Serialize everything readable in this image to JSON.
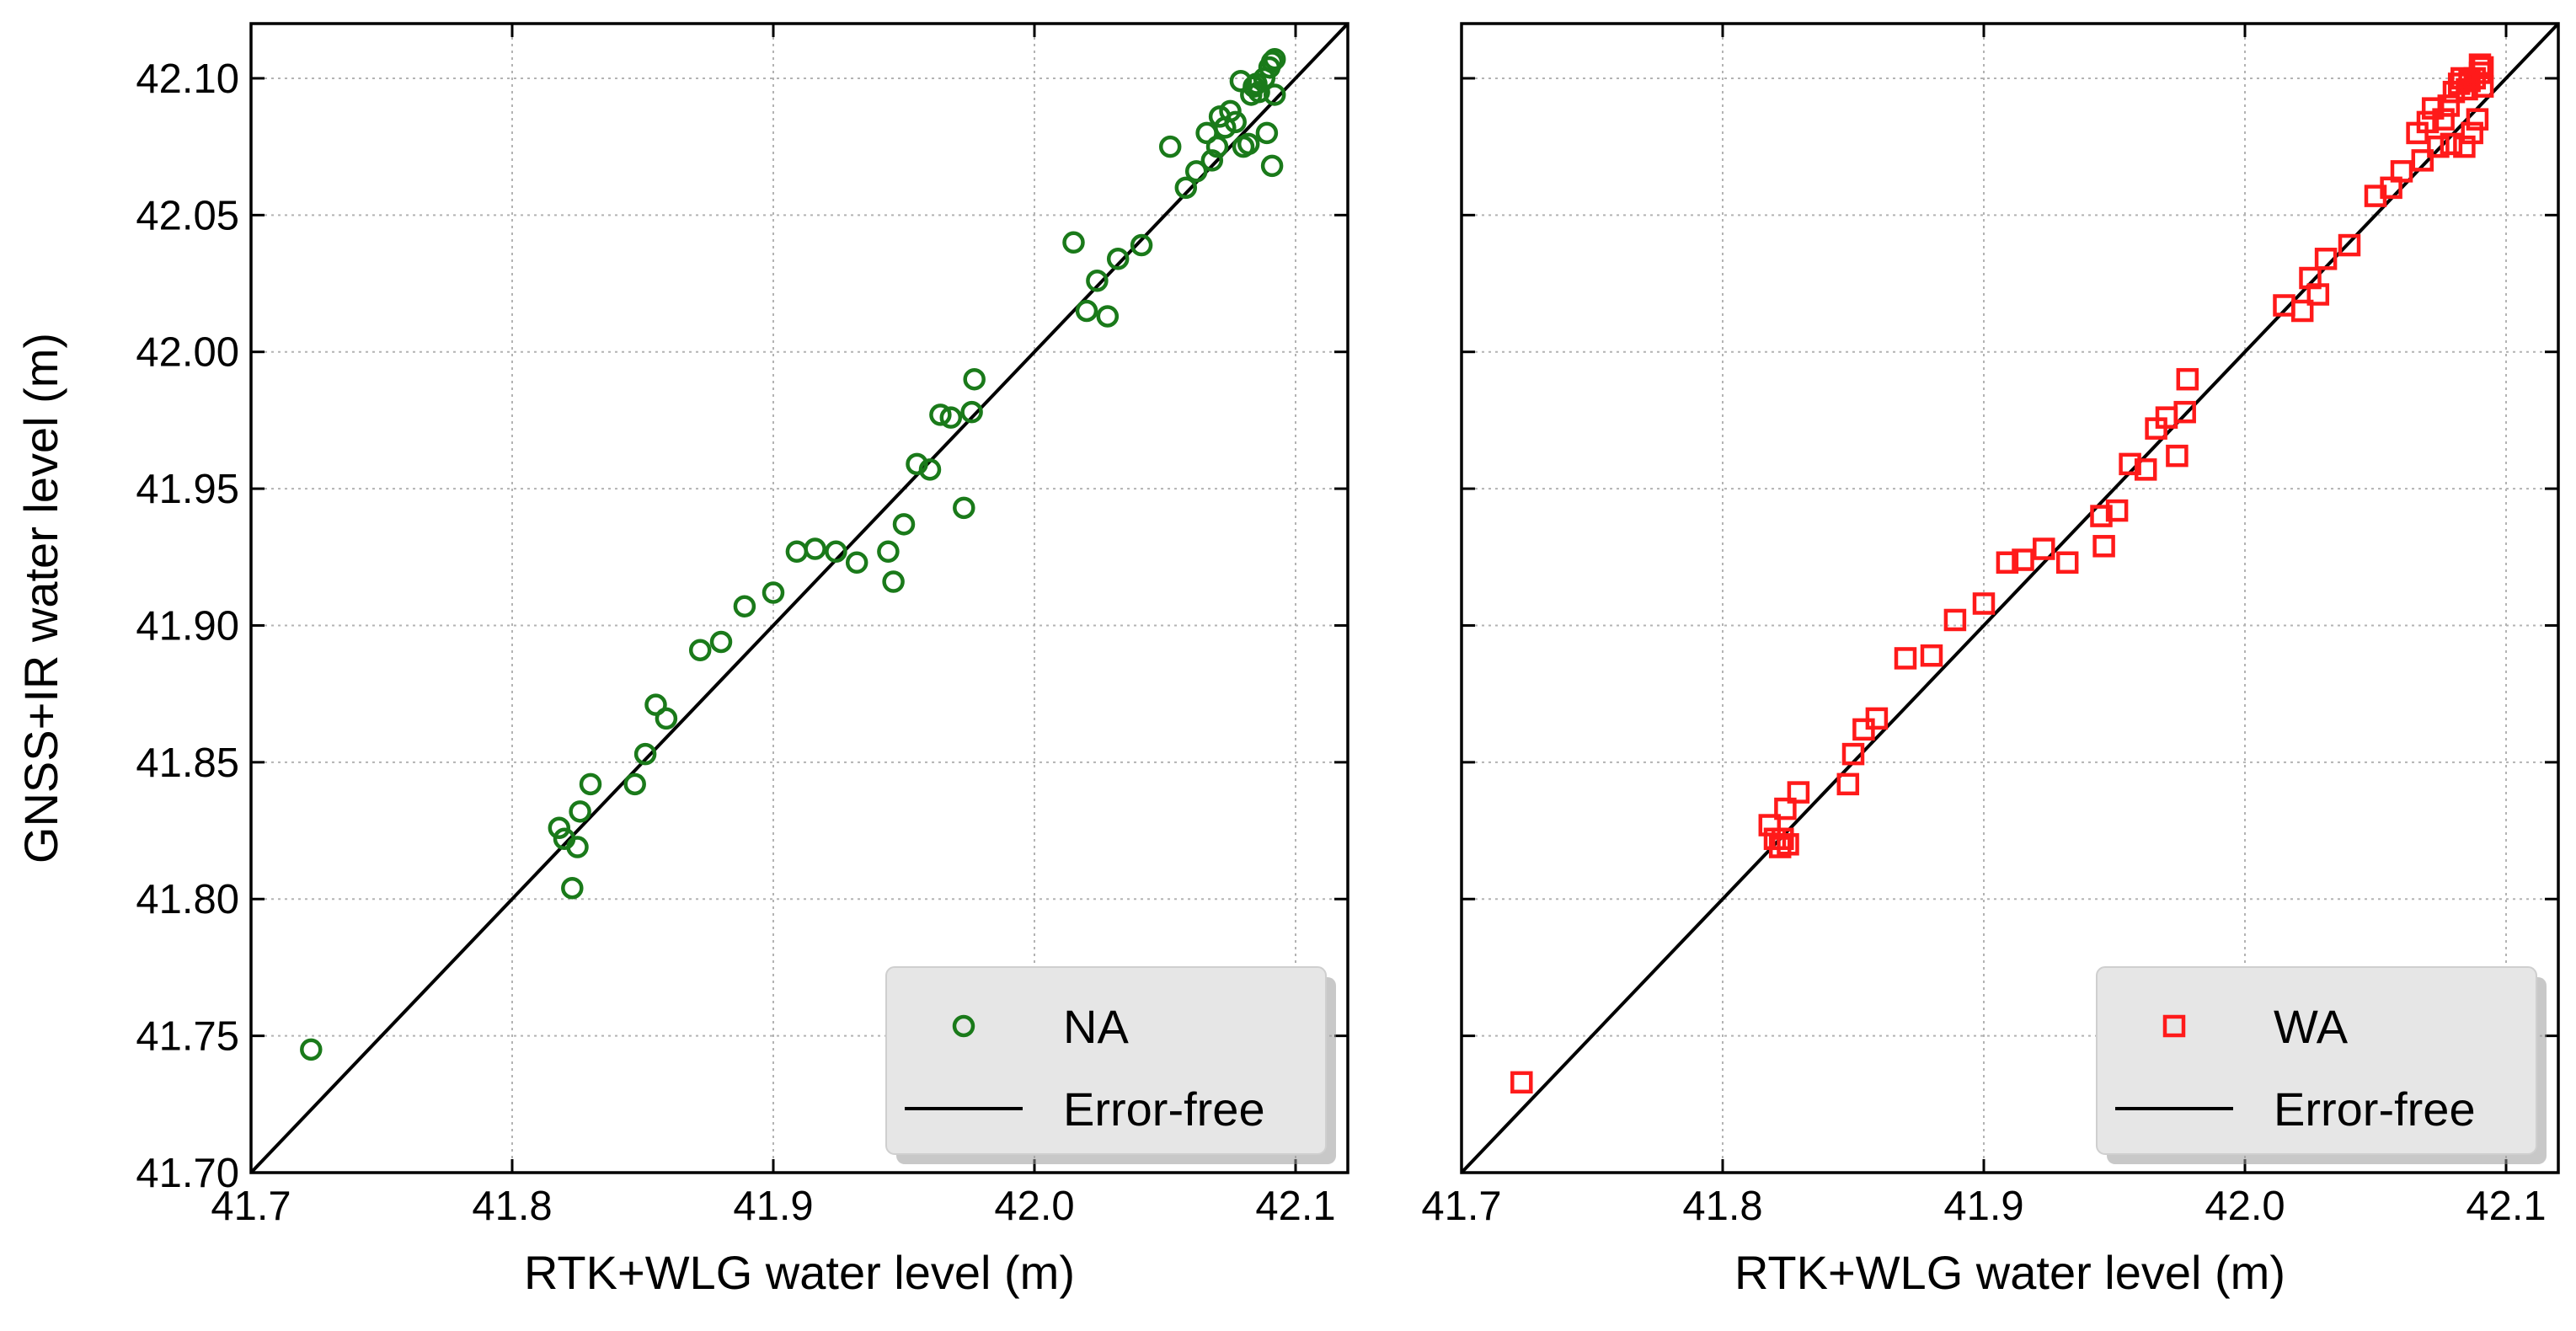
{
  "colors": {
    "na": "#1a7a1a",
    "wa": "#ff1a1a",
    "line": "#000000",
    "grid": "#b3b3b3",
    "legend_bg": "#e6e6e6"
  },
  "chart_data": [
    {
      "type": "scatter",
      "panel": "left",
      "xlabel": "RTK+WLG water level (m)",
      "ylabel": "GNSS+IR water level (m)",
      "xlim": [
        41.7,
        42.12
      ],
      "ylim": [
        41.7,
        42.12
      ],
      "xticks": [
        41.7,
        41.8,
        41.9,
        42.0,
        42.1
      ],
      "xtick_labels": [
        "41.7",
        "41.8",
        "41.9",
        "42.0",
        "42.1"
      ],
      "yticks": [
        41.7,
        41.75,
        41.8,
        41.85,
        41.9,
        41.95,
        42.0,
        42.05,
        42.1
      ],
      "ytick_labels": [
        "41.70",
        "41.75",
        "41.80",
        "41.85",
        "41.90",
        "41.95",
        "42.00",
        "42.05",
        "42.10"
      ],
      "show_ytick_labels": true,
      "grid": true,
      "legend_position": "lower-right",
      "series": [
        {
          "name": "NA",
          "marker": "circle",
          "color": "#1a7a1a",
          "x": [
            41.723,
            41.818,
            41.82,
            41.823,
            41.825,
            41.826,
            41.83,
            41.847,
            41.851,
            41.855,
            41.859,
            41.872,
            41.88,
            41.889,
            41.9,
            41.909,
            41.916,
            41.924,
            41.932,
            41.944,
            41.946,
            41.95,
            41.955,
            41.96,
            41.964,
            41.968,
            41.973,
            41.976,
            41.977,
            42.015,
            42.02,
            42.024,
            42.028,
            42.032,
            42.041,
            42.052,
            42.058,
            42.062,
            42.066,
            42.068,
            42.07,
            42.071,
            42.073,
            42.075,
            42.077,
            42.079,
            42.08,
            42.082,
            42.083,
            42.084,
            42.085,
            42.086,
            42.088,
            42.089,
            42.09,
            42.091,
            42.091,
            42.092,
            42.092
          ],
          "y": [
            41.745,
            41.826,
            41.822,
            41.804,
            41.819,
            41.832,
            41.842,
            41.842,
            41.853,
            41.871,
            41.866,
            41.891,
            41.894,
            41.907,
            41.912,
            41.927,
            41.928,
            41.927,
            41.923,
            41.927,
            41.916,
            41.937,
            41.959,
            41.957,
            41.977,
            41.976,
            41.943,
            41.978,
            41.99,
            42.04,
            42.015,
            42.026,
            42.013,
            42.034,
            42.039,
            42.075,
            42.06,
            42.066,
            42.08,
            42.07,
            42.075,
            42.086,
            42.082,
            42.088,
            42.084,
            42.099,
            42.075,
            42.076,
            42.094,
            42.097,
            42.098,
            42.095,
            42.1,
            42.08,
            42.104,
            42.106,
            42.068,
            42.094,
            42.107
          ]
        },
        {
          "name": "Error-free",
          "type": "line",
          "color": "#000000",
          "x": [
            41.7,
            42.12
          ],
          "y": [
            41.7,
            42.12
          ]
        }
      ]
    },
    {
      "type": "scatter",
      "panel": "right",
      "xlabel": "RTK+WLG water level (m)",
      "ylabel": "",
      "xlim": [
        41.7,
        42.12
      ],
      "ylim": [
        41.7,
        42.12
      ],
      "xticks": [
        41.7,
        41.8,
        41.9,
        42.0,
        42.1
      ],
      "xtick_labels": [
        "41.7",
        "41.8",
        "41.9",
        "42.0",
        "42.1"
      ],
      "yticks": [
        41.7,
        41.75,
        41.8,
        41.85,
        41.9,
        41.95,
        42.0,
        42.05,
        42.1
      ],
      "ytick_labels": [],
      "show_ytick_labels": false,
      "grid": true,
      "legend_position": "lower-right",
      "series": [
        {
          "name": "WA",
          "marker": "square",
          "color": "#ff1a1a",
          "x": [
            41.723,
            41.818,
            41.82,
            41.822,
            41.823,
            41.824,
            41.825,
            41.829,
            41.848,
            41.85,
            41.854,
            41.859,
            41.87,
            41.88,
            41.889,
            41.9,
            41.909,
            41.915,
            41.923,
            41.932,
            41.945,
            41.946,
            41.951,
            41.956,
            41.962,
            41.966,
            41.97,
            41.974,
            41.977,
            41.978,
            42.015,
            42.022,
            42.025,
            42.028,
            42.031,
            42.04,
            42.05,
            42.056,
            42.06,
            42.066,
            42.068,
            42.07,
            42.072,
            42.074,
            42.076,
            42.078,
            42.079,
            42.08,
            42.082,
            42.083,
            42.084,
            42.085,
            42.086,
            42.087,
            42.088,
            42.089,
            42.09,
            42.09,
            42.091,
            42.091
          ],
          "y": [
            41.733,
            41.827,
            41.822,
            41.819,
            41.822,
            41.833,
            41.82,
            41.839,
            41.842,
            41.853,
            41.862,
            41.866,
            41.888,
            41.889,
            41.902,
            41.908,
            41.923,
            41.924,
            41.928,
            41.923,
            41.94,
            41.929,
            41.942,
            41.959,
            41.957,
            41.972,
            41.976,
            41.962,
            41.978,
            41.99,
            42.017,
            42.015,
            42.027,
            42.021,
            42.034,
            42.039,
            42.057,
            42.06,
            42.066,
            42.08,
            42.07,
            42.084,
            42.089,
            42.075,
            42.085,
            42.09,
            42.076,
            42.095,
            42.098,
            42.1,
            42.075,
            42.096,
            42.099,
            42.08,
            42.1,
            42.085,
            42.102,
            42.105,
            42.097,
            42.104
          ]
        },
        {
          "name": "Error-free",
          "type": "line",
          "color": "#000000",
          "x": [
            41.7,
            42.12
          ],
          "y": [
            41.7,
            42.12
          ]
        }
      ]
    }
  ]
}
